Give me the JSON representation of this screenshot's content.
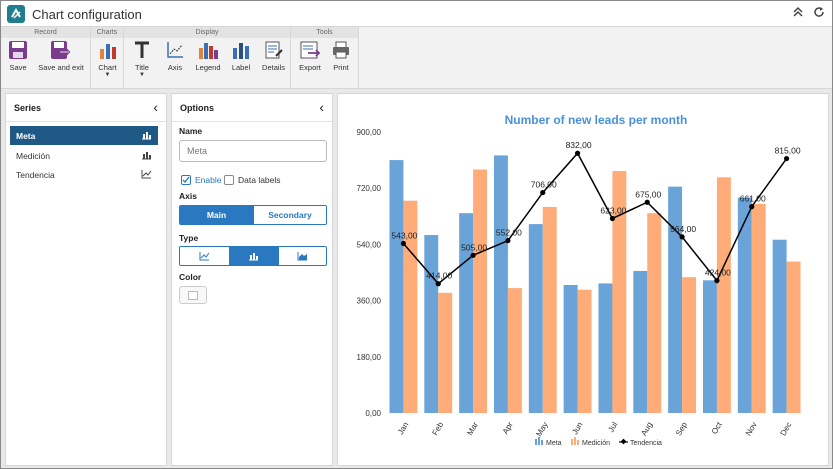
{
  "window": {
    "title": "Chart configuration"
  },
  "ribbon": {
    "groups": [
      {
        "title": "Record"
      },
      {
        "title": "Charts"
      },
      {
        "title": "Display"
      },
      {
        "title": "Tools"
      }
    ],
    "buttons": {
      "save": "Save",
      "save_exit": "Save and exit",
      "chart": "Chart",
      "title": "Title",
      "axis": "Axis",
      "legend": "Legend",
      "label": "Label",
      "details": "Details",
      "export": "Export",
      "print": "Print"
    }
  },
  "series_panel": {
    "title": "Series",
    "items": [
      {
        "label": "Meta",
        "icon": "bar-chart-icon",
        "selected": true
      },
      {
        "label": "Medición",
        "icon": "bar-chart-icon",
        "selected": false
      },
      {
        "label": "Tendencia",
        "icon": "line-chart-icon",
        "selected": false
      }
    ]
  },
  "options_panel": {
    "title": "Options",
    "name_label": "Name",
    "name_value": "Meta",
    "enable_label": "Enable",
    "enable_checked": true,
    "data_labels_label": "Data labels",
    "data_labels_checked": false,
    "axis_label": "Axis",
    "axis_main": "Main",
    "axis_secondary": "Secondary",
    "axis_selected": "Main",
    "type_label": "Type",
    "type_options": [
      "line-chart-icon",
      "bar-chart-icon",
      "area-chart-icon"
    ],
    "type_selected": "bar-chart-icon",
    "color_label": "Color"
  },
  "colors": {
    "accent": "#2a78c0",
    "selected_series": "#1e5a85",
    "meta": "#6aa3d8",
    "medicion": "#ffac78",
    "tendencia": "#000000",
    "chart_title": "#4a90d9"
  },
  "chart_data": {
    "type": "bar",
    "title": "Number of new leads per month",
    "categories": [
      "Jan",
      "Feb",
      "Mar",
      "Apr",
      "May",
      "Jun",
      "Jul",
      "Aug",
      "Sep",
      "Oct",
      "Nov",
      "Dec"
    ],
    "ylim": [
      0,
      900
    ],
    "yticks": [
      "0,00",
      "180,00",
      "360,00",
      "540,00",
      "720,00",
      "900,00"
    ],
    "grid": false,
    "legend_position": "bottom",
    "series": [
      {
        "name": "Meta",
        "type": "bar",
        "values": [
          810,
          570,
          640,
          825,
          605,
          410,
          415,
          455,
          725,
          425,
          690,
          555
        ]
      },
      {
        "name": "Medición",
        "type": "bar",
        "values": [
          680,
          385,
          780,
          400,
          660,
          395,
          775,
          640,
          435,
          755,
          670,
          485
        ]
      },
      {
        "name": "Tendencia",
        "type": "line",
        "values": [
          543,
          414,
          505,
          552,
          706,
          832,
          623,
          675,
          564,
          424,
          661,
          815
        ],
        "labels": [
          "543,00",
          "414,00",
          "505,00",
          "552,00",
          "706,00",
          "832,00",
          "623,00",
          "675,00",
          "564,00",
          "424,00",
          "661,00",
          "815,00"
        ]
      }
    ]
  }
}
